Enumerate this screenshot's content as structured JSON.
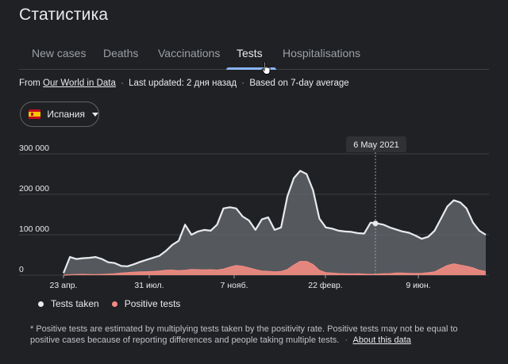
{
  "page": {
    "title": "Статистика"
  },
  "tabs": [
    {
      "label": "New cases",
      "active": false
    },
    {
      "label": "Deaths",
      "active": false
    },
    {
      "label": "Vaccinations",
      "active": false
    },
    {
      "label": "Tests",
      "active": true
    },
    {
      "label": "Hospitalisations",
      "active": false
    }
  ],
  "source": {
    "prefix": "From",
    "link": "Our World in Data",
    "updated": "Last updated: 2 дня назад",
    "basis": "Based on 7-day average",
    "separator": "·"
  },
  "region": {
    "label": "Испания",
    "flag": "spain-flag"
  },
  "chart_data": {
    "type": "area",
    "y_ticks": [
      "300 000",
      "200 000",
      "100 000",
      "0"
    ],
    "y_tick_values": [
      300000,
      200000,
      100000,
      0
    ],
    "ylim": [
      0,
      300000
    ],
    "x_tick_labels": [
      "23 апр.",
      "31 июл.",
      "7 нояб.",
      "22 февр.",
      "9 июн."
    ],
    "tooltip": "6 May 2021",
    "series": [
      {
        "name": "Tests taken",
        "color": "#e8eaed",
        "fill": "#5f6368",
        "values": [
          5000,
          45000,
          40000,
          42000,
          43000,
          45000,
          40000,
          32000,
          30000,
          23000,
          22000,
          27000,
          33000,
          38000,
          43000,
          48000,
          60000,
          75000,
          85000,
          125000,
          100000,
          108000,
          112000,
          110000,
          125000,
          165000,
          168000,
          165000,
          145000,
          135000,
          112000,
          138000,
          143000,
          112000,
          118000,
          195000,
          240000,
          258000,
          250000,
          210000,
          140000,
          118000,
          115000,
          110000,
          108000,
          107000,
          104000,
          103000,
          130000,
          128000,
          125000,
          118000,
          113000,
          108000,
          105000,
          98000,
          90000,
          95000,
          110000,
          140000,
          170000,
          185000,
          180000,
          165000,
          130000,
          110000,
          100000
        ]
      },
      {
        "name": "Positive tests",
        "color": "#f28b82",
        "fill": "#f28b82",
        "values": [
          0,
          1000,
          1500,
          2000,
          1500,
          1200,
          1800,
          2500,
          3500,
          5000,
          6000,
          7500,
          8000,
          8500,
          9000,
          10000,
          12000,
          12500,
          11000,
          12000,
          14000,
          13500,
          13000,
          13500,
          12500,
          15000,
          20000,
          24000,
          22000,
          18000,
          14000,
          10000,
          9500,
          8000,
          9000,
          14000,
          25000,
          34000,
          34000,
          26000,
          12000,
          6000,
          5000,
          4000,
          3500,
          3000,
          3500,
          2500,
          2000,
          2500,
          3500,
          3500,
          5000,
          5000,
          4500,
          4000,
          4500,
          6000,
          8000,
          16000,
          24000,
          28000,
          25000,
          22000,
          18000,
          12000,
          9000
        ]
      }
    ],
    "tooltip_index": 49
  },
  "legend": [
    {
      "label": "Tests taken",
      "color": "#e8eaed"
    },
    {
      "label": "Positive tests",
      "color": "#f28b82"
    }
  ],
  "footnote": {
    "text": "* Positive tests are estimated by multiplying tests taken by the positivity rate. Positive tests may not be equal to positive cases because of reporting differences and people taking multiple tests.",
    "separator": "·",
    "link": "About this data"
  }
}
